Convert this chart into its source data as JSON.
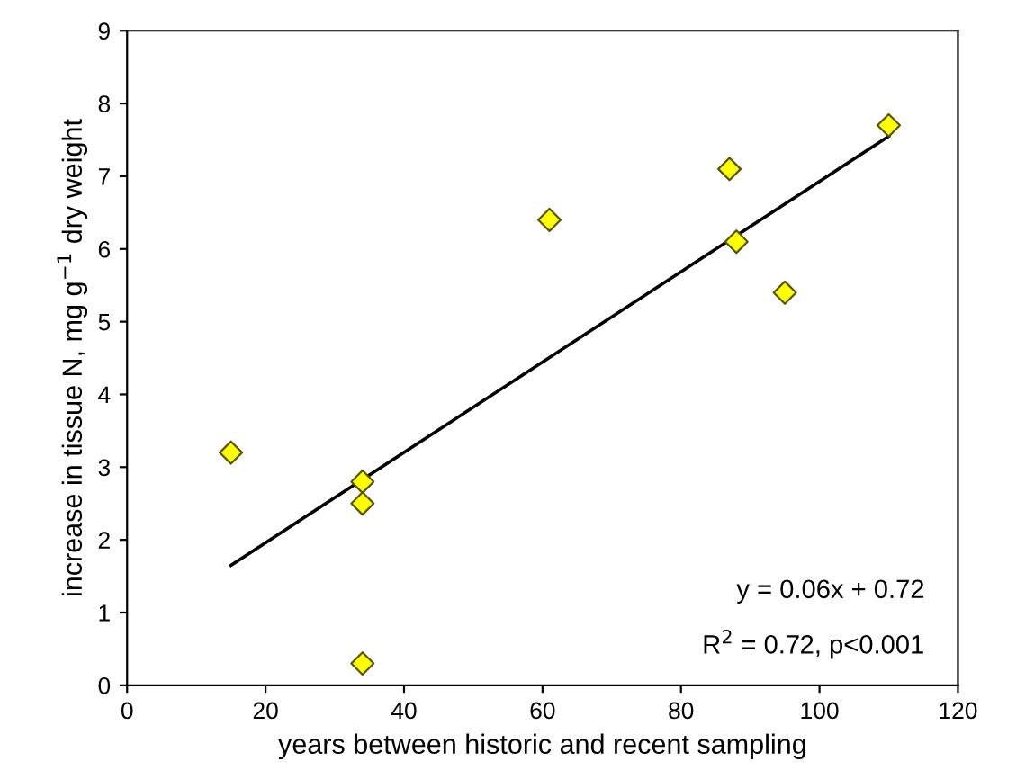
{
  "chart_data": {
    "type": "scatter",
    "xlabel": "years between historic and recent sampling",
    "ylabel": "increase in tissue N, mg g$^{−1}$ dry weight",
    "annotations": [
      "y = 0.06x + 0.72",
      "R$^{2}$ = 0.72, p<0.001"
    ],
    "series": [
      {
        "color": "#ffff00",
        "marker": "diamond",
        "x": [
          15,
          34,
          34,
          34,
          61,
          87,
          88,
          95,
          110
        ],
        "values": [
          3.2,
          2.8,
          2.5,
          0.3,
          6.4,
          7.1,
          6.1,
          5.4,
          7.7
        ]
      },
      {
        "type": "line",
        "color": "#000000",
        "marker": "none",
        "line_style": "solid",
        "x": [
          15,
          110
        ],
        "values": [
          1.65,
          7.55
        ]
      }
    ],
    "xlim": [
      0,
      120
    ],
    "xticks": [
      0,
      20,
      40,
      60,
      80,
      100,
      120
    ],
    "ylim": [
      0,
      9
    ],
    "yticks": [
      0,
      1,
      2,
      3,
      4,
      5,
      6,
      7,
      8,
      9
    ],
    "grid": false,
    "legend": false
  }
}
